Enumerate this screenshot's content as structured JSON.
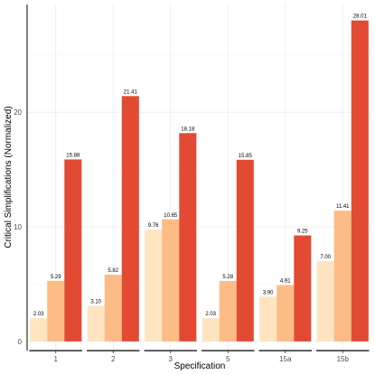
{
  "chart_data": {
    "type": "bar",
    "xlabel": "Specification",
    "ylabel": "Critical Simplifications (Normalized)",
    "categories": [
      "1",
      "2",
      "3",
      "5",
      "15a",
      "15b"
    ],
    "series": [
      {
        "color": "#fee4c1",
        "values": [
          2.03,
          3.1,
          9.76,
          2.03,
          3.9,
          7.0
        ],
        "labels": [
          "2.03",
          "3.10",
          "9.76",
          "2.03",
          "3.90",
          "7.00"
        ]
      },
      {
        "color": "#fdbc85",
        "values": [
          5.29,
          5.82,
          10.65,
          5.28,
          4.91,
          11.41
        ],
        "labels": [
          "5.29",
          "5.82",
          "10.65",
          "5.28",
          "4.91",
          "11.41"
        ]
      },
      {
        "color": "#e34a33",
        "values": [
          15.88,
          21.41,
          18.18,
          15.85,
          9.25,
          28.01
        ],
        "labels": [
          "15.88",
          "21.41",
          "18.18",
          "15.85",
          "9.25",
          "28.01"
        ]
      }
    ],
    "yticks": [
      0,
      10,
      20
    ],
    "ytick_labels": [
      "0",
      "10",
      "20"
    ],
    "ylim": [
      -0.8,
      29.4
    ],
    "grid": true,
    "legend": "none"
  }
}
